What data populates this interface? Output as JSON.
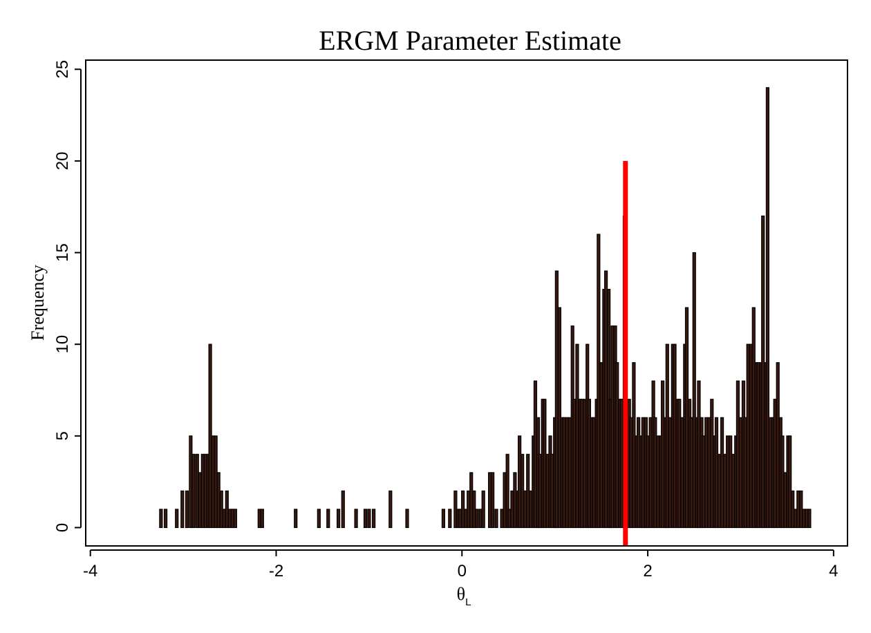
{
  "chart_data": {
    "type": "bar",
    "title": "ERGM Parameter Estimate",
    "xlabel": "θ",
    "xlabel_subscript": "L",
    "ylabel": "Frequency",
    "xlim": [
      -4.05,
      4.15
    ],
    "ylim": [
      -1,
      25.5
    ],
    "xticks": [
      -4,
      -2,
      0,
      2,
      4
    ],
    "xtick_labels": [
      "-4",
      "-2",
      "0",
      "2",
      "4"
    ],
    "yticks": [
      0,
      5,
      10,
      15,
      20,
      25
    ],
    "ytick_labels": [
      "0",
      "5",
      "10",
      "15",
      "20",
      "25"
    ],
    "grid": false,
    "legend": "none",
    "bin_width": 0.0297,
    "bar_fill": "#3a1a10",
    "bar_stroke": "#000000",
    "bars": [
      [
        -3.24,
        1
      ],
      [
        -3.19,
        1
      ],
      [
        -3.07,
        1
      ],
      [
        -3.01,
        2
      ],
      [
        -2.96,
        2
      ],
      [
        -2.92,
        5
      ],
      [
        -2.89,
        4
      ],
      [
        -2.85,
        4
      ],
      [
        -2.82,
        3
      ],
      [
        -2.79,
        4
      ],
      [
        -2.76,
        4
      ],
      [
        -2.73,
        4
      ],
      [
        -2.71,
        10
      ],
      [
        -2.68,
        5
      ],
      [
        -2.65,
        5
      ],
      [
        -2.62,
        3
      ],
      [
        -2.59,
        2
      ],
      [
        -2.56,
        1
      ],
      [
        -2.53,
        2
      ],
      [
        -2.5,
        1
      ],
      [
        -2.47,
        1
      ],
      [
        -2.44,
        1
      ],
      [
        -2.18,
        1
      ],
      [
        -2.15,
        1
      ],
      [
        -1.79,
        1
      ],
      [
        -1.54,
        1
      ],
      [
        -1.44,
        1
      ],
      [
        -1.33,
        1
      ],
      [
        -1.28,
        2
      ],
      [
        -1.14,
        1
      ],
      [
        -1.04,
        1
      ],
      [
        -1.0,
        1
      ],
      [
        -0.95,
        1
      ],
      [
        -0.77,
        2
      ],
      [
        -0.59,
        1
      ],
      [
        -0.2,
        1
      ],
      [
        -0.13,
        1
      ],
      [
        -0.07,
        2
      ],
      [
        -0.04,
        1
      ],
      [
        -0.02,
        1
      ],
      [
        0.01,
        2
      ],
      [
        0.04,
        1
      ],
      [
        0.07,
        2
      ],
      [
        0.1,
        3
      ],
      [
        0.13,
        2
      ],
      [
        0.16,
        1
      ],
      [
        0.2,
        1
      ],
      [
        0.23,
        2
      ],
      [
        0.3,
        3
      ],
      [
        0.33,
        3
      ],
      [
        0.37,
        1
      ],
      [
        0.43,
        1
      ],
      [
        0.46,
        3
      ],
      [
        0.49,
        4
      ],
      [
        0.51,
        1
      ],
      [
        0.54,
        2
      ],
      [
        0.57,
        3
      ],
      [
        0.6,
        2
      ],
      [
        0.62,
        5
      ],
      [
        0.65,
        4
      ],
      [
        0.68,
        2
      ],
      [
        0.71,
        4
      ],
      [
        0.74,
        2
      ],
      [
        0.77,
        5
      ],
      [
        0.79,
        8
      ],
      [
        0.82,
        6
      ],
      [
        0.84,
        4
      ],
      [
        0.87,
        7
      ],
      [
        0.89,
        7
      ],
      [
        0.92,
        4
      ],
      [
        0.95,
        5
      ],
      [
        0.97,
        4
      ],
      [
        1.0,
        6
      ],
      [
        1.02,
        14
      ],
      [
        1.05,
        12
      ],
      [
        1.08,
        6
      ],
      [
        1.1,
        6
      ],
      [
        1.13,
        6
      ],
      [
        1.16,
        6
      ],
      [
        1.19,
        11
      ],
      [
        1.21,
        7
      ],
      [
        1.24,
        10
      ],
      [
        1.27,
        7
      ],
      [
        1.29,
        7
      ],
      [
        1.32,
        7
      ],
      [
        1.35,
        10
      ],
      [
        1.37,
        7
      ],
      [
        1.4,
        6
      ],
      [
        1.42,
        6
      ],
      [
        1.45,
        7
      ],
      [
        1.47,
        16
      ],
      [
        1.5,
        9
      ],
      [
        1.53,
        13
      ],
      [
        1.55,
        14
      ],
      [
        1.58,
        13
      ],
      [
        1.6,
        7
      ],
      [
        1.62,
        11
      ],
      [
        1.65,
        11
      ],
      [
        1.67,
        9
      ],
      [
        1.7,
        7
      ],
      [
        1.72,
        7
      ],
      [
        1.75,
        17
      ],
      [
        1.77,
        7
      ],
      [
        1.8,
        7
      ],
      [
        1.82,
        6
      ],
      [
        1.85,
        9
      ],
      [
        1.88,
        5
      ],
      [
        1.9,
        6
      ],
      [
        1.93,
        5
      ],
      [
        1.95,
        6
      ],
      [
        1.98,
        6
      ],
      [
        2.0,
        5
      ],
      [
        2.03,
        6
      ],
      [
        2.06,
        8
      ],
      [
        2.08,
        6
      ],
      [
        2.11,
        5
      ],
      [
        2.14,
        5
      ],
      [
        2.16,
        8
      ],
      [
        2.19,
        6
      ],
      [
        2.21,
        10
      ],
      [
        2.24,
        6
      ],
      [
        2.27,
        10
      ],
      [
        2.29,
        10
      ],
      [
        2.32,
        7
      ],
      [
        2.34,
        7
      ],
      [
        2.37,
        6
      ],
      [
        2.4,
        10
      ],
      [
        2.42,
        12
      ],
      [
        2.45,
        7
      ],
      [
        2.47,
        6
      ],
      [
        2.5,
        15
      ],
      [
        2.53,
        6
      ],
      [
        2.55,
        8
      ],
      [
        2.58,
        6
      ],
      [
        2.6,
        5
      ],
      [
        2.63,
        6
      ],
      [
        2.66,
        6
      ],
      [
        2.69,
        7
      ],
      [
        2.72,
        5
      ],
      [
        2.74,
        6
      ],
      [
        2.77,
        4
      ],
      [
        2.8,
        6
      ],
      [
        2.83,
        4
      ],
      [
        2.86,
        5
      ],
      [
        2.89,
        5
      ],
      [
        2.92,
        4
      ],
      [
        2.95,
        5
      ],
      [
        2.97,
        8
      ],
      [
        3.0,
        6
      ],
      [
        3.03,
        8
      ],
      [
        3.05,
        6
      ],
      [
        3.08,
        10
      ],
      [
        3.11,
        10
      ],
      [
        3.14,
        12
      ],
      [
        3.17,
        9
      ],
      [
        3.19,
        9
      ],
      [
        3.22,
        9
      ],
      [
        3.24,
        17
      ],
      [
        3.27,
        9
      ],
      [
        3.29,
        24
      ],
      [
        3.32,
        6
      ],
      [
        3.35,
        6
      ],
      [
        3.37,
        7
      ],
      [
        3.4,
        9
      ],
      [
        3.43,
        6
      ],
      [
        3.45,
        5
      ],
      [
        3.48,
        3
      ],
      [
        3.51,
        5
      ],
      [
        3.53,
        5
      ],
      [
        3.56,
        2
      ],
      [
        3.59,
        1
      ],
      [
        3.62,
        2
      ],
      [
        3.65,
        2
      ],
      [
        3.68,
        1
      ],
      [
        3.71,
        1
      ],
      [
        3.74,
        1
      ]
    ],
    "annotations": [
      {
        "type": "vertical-line",
        "x": 1.76,
        "y_from": -1,
        "y_to": 20,
        "color": "#ff0000"
      }
    ]
  }
}
